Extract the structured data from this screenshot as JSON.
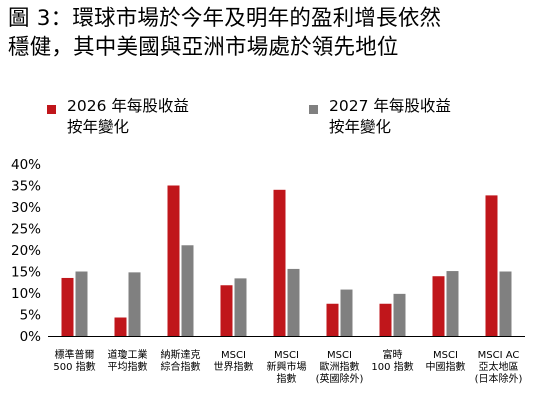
{
  "title_lines": [
    "圖 3：環球市場於今年及明年的盈利增長依然",
    "穩健，其中美國與亞洲市場處於領先地位"
  ],
  "colors": {
    "series_2026": "#C0161B",
    "series_2027": "#808080"
  },
  "legend": [
    {
      "lines": [
        "2026 年每股收益",
        "按年變化"
      ]
    },
    {
      "lines": [
        "2027 年每股收益",
        "按年變化"
      ]
    }
  ],
  "chart_data": {
    "type": "bar",
    "ylim": [
      0,
      40
    ],
    "yticks": [
      "0%",
      "5%",
      "10%",
      "15%",
      "20%",
      "25%",
      "30%",
      "35%",
      "40%"
    ],
    "categories": [
      [
        "標準普爾",
        "500 指數"
      ],
      [
        "道瓊工業",
        "平均指數"
      ],
      [
        "納斯達克",
        "綜合指數"
      ],
      [
        "MSCI",
        "世界指數"
      ],
      [
        "MSCI",
        "新興市場",
        "指數"
      ],
      [
        "MSCI",
        "歐洲指數",
        "(英國除外)"
      ],
      [
        "富時",
        "100 指數"
      ],
      [
        "MSCI",
        "中國指數"
      ],
      [
        "MSCI AC",
        "亞太地區",
        "(日本除外)"
      ]
    ],
    "series": [
      {
        "name": "2026 年每股收益按年變化",
        "values": [
          13.5,
          4.3,
          35.0,
          11.8,
          34.0,
          7.5,
          7.5,
          13.9,
          32.7
        ]
      },
      {
        "name": "2027 年每股收益按年變化",
        "values": [
          15.0,
          14.8,
          21.1,
          13.4,
          15.6,
          10.8,
          9.8,
          15.1,
          15.0
        ]
      }
    ]
  }
}
